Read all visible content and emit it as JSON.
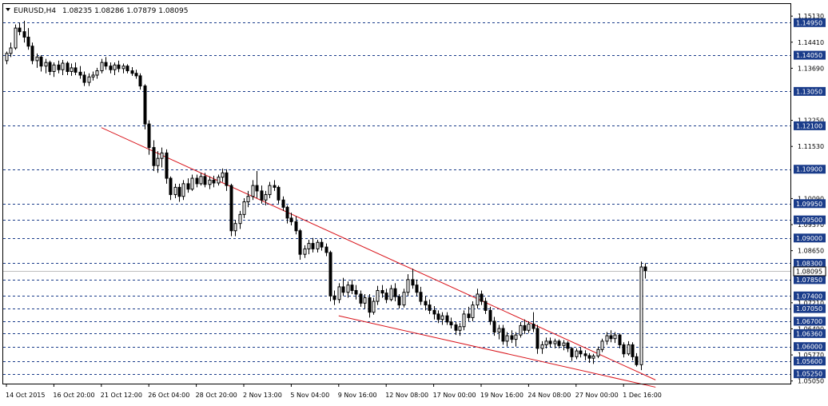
{
  "header": {
    "symbol": "EURUSD,H4",
    "ohlc": "1.08235 1.08286 1.07879 1.08095"
  },
  "colors": {
    "background": "#ffffff",
    "candle": "#000000",
    "grid": "#1a3c8a",
    "trendline": "#d9141b",
    "current_price_line": "#c0c0c0",
    "label_fill": "#1a3c8a",
    "label_text": "#ffffff",
    "axis_text": "#000000"
  },
  "chart_data": {
    "type": "candlestick",
    "title": "EURUSD,H4",
    "ylim": [
      1.04999,
      1.152
    ],
    "x_tick_labels": [
      "14 Oct 2015",
      "16 Oct 20:00",
      "21 Oct 12:00",
      "26 Oct 04:00",
      "28 Oct 20:00",
      "2 Nov 13:00",
      "5 Nov 04:00",
      "9 Nov 16:00",
      "12 Nov 08:00",
      "17 Nov 00:00",
      "19 Nov 16:00",
      "24 Nov 08:00",
      "27 Nov 00:00",
      "1 Dec 16:00"
    ],
    "y_tick_labels": [
      "1.15130",
      "1.14410",
      "1.13690",
      "1.12250",
      "1.11530",
      "1.10090",
      "1.09370",
      "1.08650",
      "1.07210",
      "1.06490",
      "1.05770",
      "1.05050"
    ],
    "horizontal_levels": [
      "1.14950",
      "1.14050",
      "1.13050",
      "1.12100",
      "1.10900",
      "1.09950",
      "1.09500",
      "1.09000",
      "1.08300",
      "1.07850",
      "1.07400",
      "1.07050",
      "1.06700",
      "1.06360",
      "1.06000",
      "1.05600",
      "1.05250"
    ],
    "current_price": "1.08095",
    "trendlines": [
      {
        "from": [
          "21 Oct 12:00",
          1.1205
        ],
        "to": [
          "1 Dec 16:00",
          1.053
        ]
      },
      {
        "from": [
          "9 Nov 16:00",
          1.0685
        ],
        "to": [
          "1 Dec 16:00",
          1.051
        ]
      }
    ],
    "ohlc": [
      [
        1.139,
        1.1415,
        1.138,
        1.141
      ],
      [
        1.141,
        1.144,
        1.14,
        1.1425
      ],
      [
        1.1425,
        1.149,
        1.142,
        1.148
      ],
      [
        1.148,
        1.1495,
        1.146,
        1.147
      ],
      [
        1.147,
        1.15,
        1.144,
        1.1455
      ],
      [
        1.1455,
        1.148,
        1.142,
        1.143
      ],
      [
        1.143,
        1.144,
        1.138,
        1.139
      ],
      [
        1.139,
        1.141,
        1.137,
        1.14
      ],
      [
        1.14,
        1.1405,
        1.136,
        1.1375
      ],
      [
        1.1375,
        1.1395,
        1.1355,
        1.1385
      ],
      [
        1.1385,
        1.139,
        1.135,
        1.136
      ],
      [
        1.136,
        1.1385,
        1.1345,
        1.1378
      ],
      [
        1.1378,
        1.139,
        1.1355,
        1.1365
      ],
      [
        1.1365,
        1.1392,
        1.135,
        1.1383
      ],
      [
        1.1383,
        1.1388,
        1.135,
        1.136
      ],
      [
        1.136,
        1.1382,
        1.1348,
        1.137
      ],
      [
        1.137,
        1.1385,
        1.135,
        1.1358
      ],
      [
        1.1358,
        1.1375,
        1.134,
        1.135
      ],
      [
        1.135,
        1.136,
        1.132,
        1.133
      ],
      [
        1.133,
        1.1355,
        1.132,
        1.1345
      ],
      [
        1.1345,
        1.136,
        1.1335,
        1.135
      ],
      [
        1.135,
        1.137,
        1.134,
        1.1362
      ],
      [
        1.1362,
        1.1395,
        1.1355,
        1.1385
      ],
      [
        1.1385,
        1.14,
        1.1365,
        1.1375
      ],
      [
        1.1375,
        1.1385,
        1.1355,
        1.1365
      ],
      [
        1.1365,
        1.1385,
        1.135,
        1.1378
      ],
      [
        1.1378,
        1.139,
        1.1358,
        1.1368
      ],
      [
        1.1368,
        1.1382,
        1.1355,
        1.1375
      ],
      [
        1.1375,
        1.138,
        1.1355,
        1.1362
      ],
      [
        1.1362,
        1.1372,
        1.1348,
        1.1355
      ],
      [
        1.1355,
        1.1365,
        1.134,
        1.1348
      ],
      [
        1.1348,
        1.1355,
        1.131,
        1.132
      ],
      [
        1.132,
        1.1325,
        1.12,
        1.1215
      ],
      [
        1.1215,
        1.1225,
        1.113,
        1.115
      ],
      [
        1.115,
        1.117,
        1.1085,
        1.11
      ],
      [
        1.11,
        1.114,
        1.108,
        1.112
      ],
      [
        1.112,
        1.115,
        1.1095,
        1.1135
      ],
      [
        1.1135,
        1.1145,
        1.105,
        1.1065
      ],
      [
        1.1065,
        1.107,
        1.1005,
        1.102
      ],
      [
        1.102,
        1.105,
        1.101,
        1.104
      ],
      [
        1.104,
        1.105,
        1.1,
        1.1015
      ],
      [
        1.1015,
        1.106,
        1.1005,
        1.105
      ],
      [
        1.105,
        1.1065,
        1.1025,
        1.1035
      ],
      [
        1.1035,
        1.1075,
        1.103,
        1.1065
      ],
      [
        1.1065,
        1.1075,
        1.104,
        1.105
      ],
      [
        1.105,
        1.108,
        1.1045,
        1.107
      ],
      [
        1.107,
        1.108,
        1.104,
        1.1048
      ],
      [
        1.1048,
        1.107,
        1.1035,
        1.106
      ],
      [
        1.106,
        1.1072,
        1.104,
        1.1052
      ],
      [
        1.1052,
        1.1075,
        1.1045,
        1.1068
      ],
      [
        1.1068,
        1.1092,
        1.1055,
        1.108
      ],
      [
        1.108,
        1.109,
        1.103,
        1.1045
      ],
      [
        1.1045,
        1.105,
        1.0905,
        1.092
      ],
      [
        1.092,
        1.095,
        1.0905,
        1.094
      ],
      [
        1.094,
        1.0975,
        1.0925,
        1.0965
      ],
      [
        1.0965,
        1.101,
        1.0955,
        1.1
      ],
      [
        1.1,
        1.103,
        1.0985,
        1.1015
      ],
      [
        1.1015,
        1.106,
        1.1005,
        1.1045
      ],
      [
        1.1045,
        1.1085,
        1.101,
        1.103
      ],
      [
        1.103,
        1.1045,
        1.0995,
        1.1005
      ],
      [
        1.1005,
        1.103,
        1.099,
        1.102
      ],
      [
        1.102,
        1.1055,
        1.101,
        1.1045
      ],
      [
        1.1045,
        1.106,
        1.103,
        1.104
      ],
      [
        1.104,
        1.1045,
        1.0995,
        1.1005
      ],
      [
        1.1005,
        1.1015,
        1.0975,
        1.0985
      ],
      [
        1.0985,
        1.099,
        1.094,
        1.0955
      ],
      [
        1.0955,
        1.097,
        1.0935,
        1.0945
      ],
      [
        1.0945,
        1.096,
        1.091,
        1.092
      ],
      [
        1.092,
        1.0925,
        1.084,
        1.0855
      ],
      [
        1.0855,
        1.088,
        1.0845,
        1.087
      ],
      [
        1.087,
        1.0895,
        1.0855,
        1.0885
      ],
      [
        1.0885,
        1.09,
        1.086,
        1.087
      ],
      [
        1.087,
        1.0895,
        1.086,
        1.0888
      ],
      [
        1.0888,
        1.0898,
        1.0865,
        1.0875
      ],
      [
        1.0875,
        1.0885,
        1.085,
        1.086
      ],
      [
        1.086,
        1.0865,
        1.0725,
        1.074
      ],
      [
        1.074,
        1.0755,
        1.0715,
        1.073
      ],
      [
        1.073,
        1.0775,
        1.072,
        1.0765
      ],
      [
        1.0765,
        1.079,
        1.074,
        1.075
      ],
      [
        1.075,
        1.078,
        1.0735,
        1.077
      ],
      [
        1.077,
        1.0785,
        1.0745,
        1.0755
      ],
      [
        1.0755,
        1.077,
        1.073,
        1.0745
      ],
      [
        1.0745,
        1.0755,
        1.071,
        1.072
      ],
      [
        1.072,
        1.0745,
        1.0705,
        1.0735
      ],
      [
        1.0735,
        1.0745,
        1.068,
        1.0695
      ],
      [
        1.0695,
        1.0735,
        1.0688,
        1.0725
      ],
      [
        1.0725,
        1.0768,
        1.0715,
        1.0755
      ],
      [
        1.0755,
        1.077,
        1.0735,
        1.0748
      ],
      [
        1.0748,
        1.076,
        1.072,
        1.073
      ],
      [
        1.073,
        1.077,
        1.0725,
        1.076
      ],
      [
        1.076,
        1.0775,
        1.0725,
        1.0738
      ],
      [
        1.0738,
        1.0745,
        1.0705,
        1.0715
      ],
      [
        1.0715,
        1.076,
        1.0708,
        1.075
      ],
      [
        1.075,
        1.08,
        1.074,
        1.0785
      ],
      [
        1.0785,
        1.0815,
        1.076,
        1.077
      ],
      [
        1.077,
        1.0785,
        1.074,
        1.075
      ],
      [
        1.075,
        1.0765,
        1.0715,
        1.0725
      ],
      [
        1.0725,
        1.074,
        1.07,
        1.0715
      ],
      [
        1.0715,
        1.073,
        1.069,
        1.07
      ],
      [
        1.07,
        1.0712,
        1.0675,
        1.069
      ],
      [
        1.069,
        1.07,
        1.0665,
        1.0675
      ],
      [
        1.0675,
        1.0695,
        1.066,
        1.0685
      ],
      [
        1.0685,
        1.0695,
        1.066,
        1.0668
      ],
      [
        1.0668,
        1.068,
        1.065,
        1.066
      ],
      [
        1.066,
        1.0668,
        1.0632,
        1.0645
      ],
      [
        1.0645,
        1.0665,
        1.063,
        1.0655
      ],
      [
        1.0655,
        1.07,
        1.0645,
        1.069
      ],
      [
        1.069,
        1.071,
        1.067,
        1.068
      ],
      [
        1.068,
        1.0725,
        1.067,
        1.0715
      ],
      [
        1.0715,
        1.076,
        1.0705,
        1.0745
      ],
      [
        1.0745,
        1.0755,
        1.0715,
        1.0725
      ],
      [
        1.0725,
        1.0735,
        1.069,
        1.07
      ],
      [
        1.07,
        1.071,
        1.066,
        1.067
      ],
      [
        1.067,
        1.0682,
        1.063,
        1.064
      ],
      [
        1.064,
        1.066,
        1.062,
        1.065
      ],
      [
        1.065,
        1.066,
        1.0605,
        1.0615
      ],
      [
        1.0615,
        1.064,
        1.06,
        1.063
      ],
      [
        1.063,
        1.0645,
        1.061,
        1.062
      ],
      [
        1.062,
        1.064,
        1.06,
        1.0632
      ],
      [
        1.0632,
        1.0668,
        1.0625,
        1.0658
      ],
      [
        1.0658,
        1.0675,
        1.0635,
        1.0645
      ],
      [
        1.0645,
        1.067,
        1.0638,
        1.0662
      ],
      [
        1.0662,
        1.0695,
        1.064,
        1.065
      ],
      [
        1.065,
        1.066,
        1.058,
        1.0595
      ],
      [
        1.0595,
        1.0615,
        1.058,
        1.0605
      ],
      [
        1.0605,
        1.0625,
        1.0595,
        1.0615
      ],
      [
        1.0615,
        1.0625,
        1.0598,
        1.0608
      ],
      [
        1.0608,
        1.0622,
        1.0595,
        1.0615
      ],
      [
        1.0615,
        1.062,
        1.0595,
        1.0603
      ],
      [
        1.0603,
        1.0618,
        1.059,
        1.061
      ],
      [
        1.061,
        1.0615,
        1.0585,
        1.0595
      ],
      [
        1.0595,
        1.0598,
        1.056,
        1.0572
      ],
      [
        1.0572,
        1.0595,
        1.0565,
        1.0588
      ],
      [
        1.0588,
        1.0598,
        1.057,
        1.058
      ],
      [
        1.058,
        1.059,
        1.0562,
        1.0575
      ],
      [
        1.0575,
        1.0582,
        1.0555,
        1.0568
      ],
      [
        1.0568,
        1.058,
        1.0552,
        1.0574
      ],
      [
        1.0574,
        1.06,
        1.0568,
        1.0592
      ],
      [
        1.0592,
        1.0622,
        1.0585,
        1.0615
      ],
      [
        1.0615,
        1.064,
        1.0605,
        1.063
      ],
      [
        1.063,
        1.0645,
        1.0612,
        1.0622
      ],
      [
        1.0622,
        1.064,
        1.061,
        1.0632
      ],
      [
        1.0632,
        1.0636,
        1.0595,
        1.0605
      ],
      [
        1.0605,
        1.0612,
        1.057,
        1.058
      ],
      [
        1.058,
        1.0615,
        1.0575,
        1.0605
      ],
      [
        1.0605,
        1.0612,
        1.0562,
        1.0572
      ],
      [
        1.0572,
        1.0582,
        1.0545,
        1.055
      ],
      [
        1.055,
        1.0835,
        1.0535,
        1.082
      ],
      [
        1.082,
        1.083,
        1.0788,
        1.081
      ]
    ]
  }
}
